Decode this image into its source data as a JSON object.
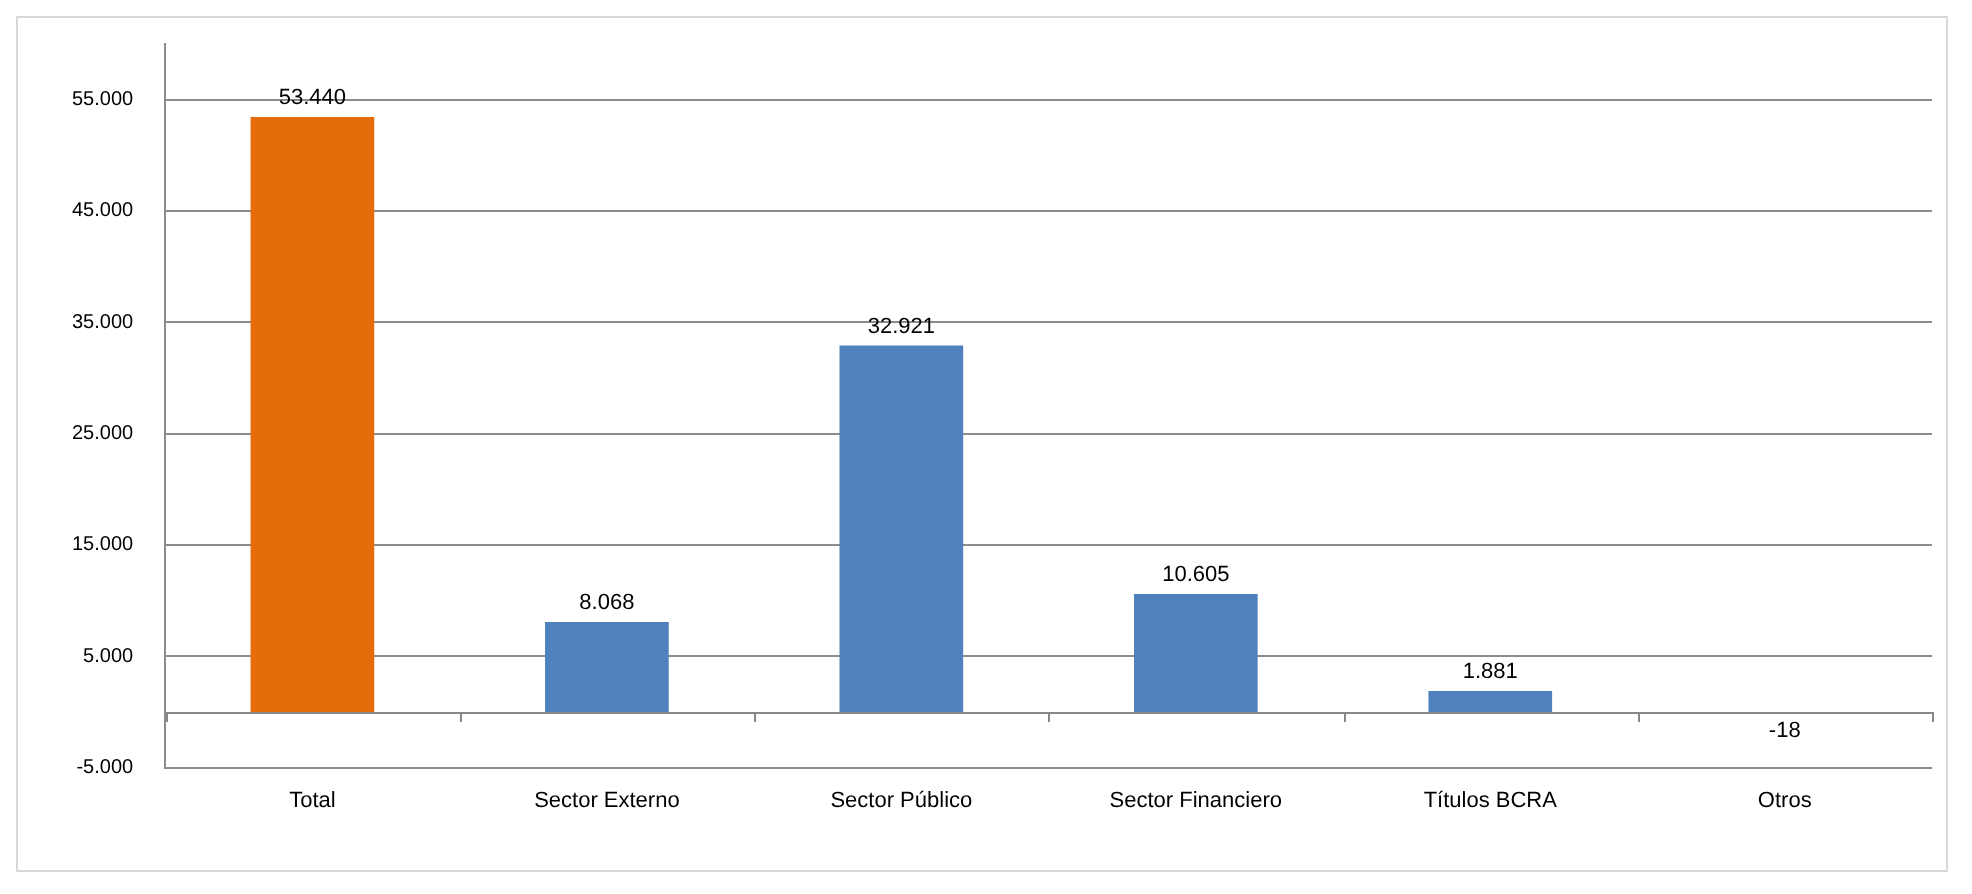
{
  "chart_data": {
    "type": "bar",
    "categories": [
      "Total",
      "Sector Externo",
      "Sector Público",
      "Sector Financiero",
      "Títulos BCRA",
      "Otros"
    ],
    "values": [
      53440,
      8068,
      32921,
      10605,
      1881,
      -18
    ],
    "colors": [
      "#e46c0a",
      "#4f81bd",
      "#4f81bd",
      "#4f81bd",
      "#4f81bd",
      "#4f81bd"
    ],
    "value_labels": [
      "53.440",
      "8.068",
      "32.921",
      "10.605",
      "1.881",
      "-18"
    ],
    "ylim": [
      -5000,
      60000
    ],
    "yticks": [
      {
        "value": -5000,
        "label": "-5.000"
      },
      {
        "value": 5000,
        "label": "5.000"
      },
      {
        "value": 15000,
        "label": "15.000"
      },
      {
        "value": 25000,
        "label": "25.000"
      },
      {
        "value": 35000,
        "label": "35.000"
      },
      {
        "value": 45000,
        "label": "45.000"
      },
      {
        "value": 55000,
        "label": "55.000"
      }
    ],
    "grid": "y",
    "legend": false
  }
}
